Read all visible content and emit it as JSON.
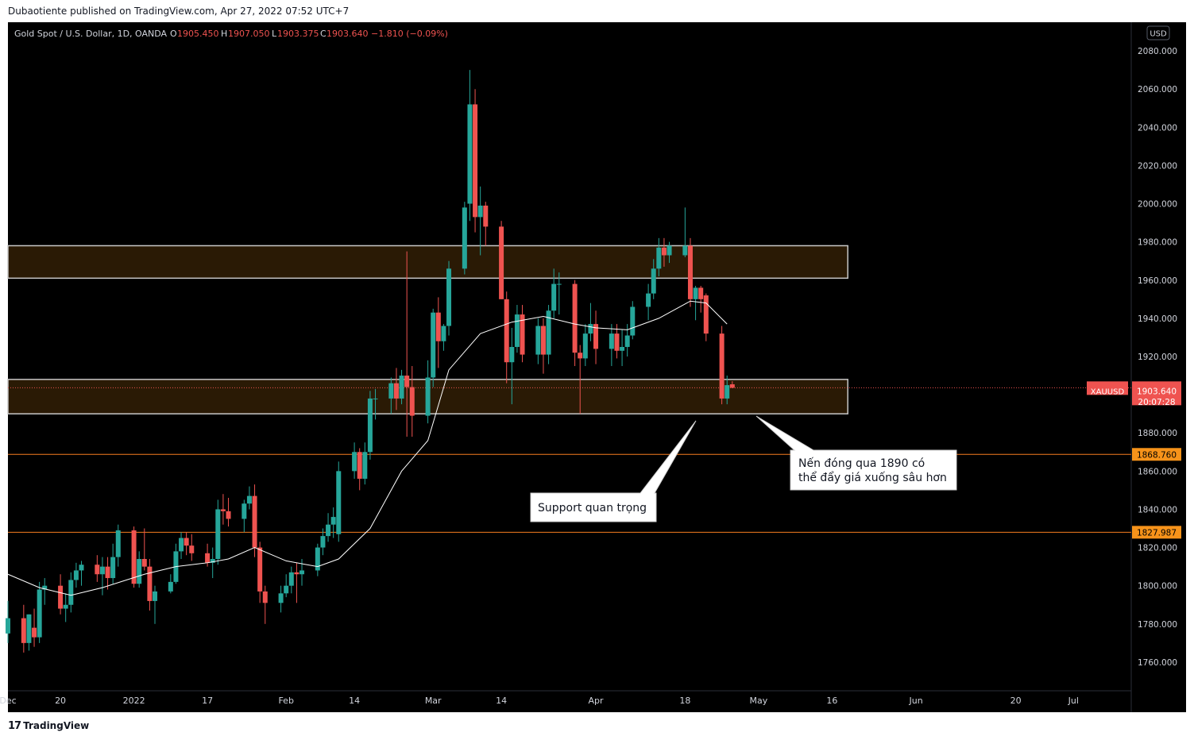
{
  "header": {
    "publisher_line": "Dubaotiente published on TradingView.com, Apr 27, 2022 07:52 UTC+7"
  },
  "legend": {
    "title": "Gold Spot / U.S. Dollar, 1D, OANDA",
    "open_label": "O",
    "open_value": "1905.450",
    "high_label": "H",
    "high_value": "1907.050",
    "low_label": "L",
    "low_value": "1903.375",
    "close_label": "C",
    "close_value": "1903.640",
    "change": "−1.810 (−0.09%)"
  },
  "currency_badge": "USD",
  "price_tag": {
    "symbol": "XAUUSD",
    "price": "1903.640",
    "countdown": "20:07:28"
  },
  "level_tags": [
    {
      "value": 1868.76,
      "label": "1868.760"
    },
    {
      "value": 1827.987,
      "label": "1827.987"
    }
  ],
  "annotations": [
    {
      "text_lines": [
        "Support quan trọng"
      ]
    },
    {
      "text_lines": [
        "Nến đóng qua 1890 có",
        "thể đẩy giá xuống sâu hơn"
      ]
    }
  ],
  "footer": {
    "brand": "TradingView"
  },
  "colors": {
    "background": "#000000",
    "up": "#26a69a",
    "down": "#ef5350",
    "zone_fill": "#2a1a05",
    "zone_border": "#c8c8c8",
    "level_line": "#f57c1f",
    "level_tag": "#f7931a",
    "axis_text": "#d1d4dc",
    "ma_line": "#ffffff"
  },
  "chart_data": {
    "type": "candlestick",
    "symbol": "XAUUSD",
    "timeframe": "1D",
    "y_axis": {
      "range": [
        1745,
        2095
      ],
      "ticks": [
        1760,
        1780,
        1800,
        1820,
        1840,
        1860,
        1880,
        1900,
        1920,
        1940,
        1960,
        1980,
        2000,
        2020,
        2040,
        2060,
        2080
      ],
      "tick_labels": [
        "1760.000",
        "1780.000",
        "1800.000",
        "1820.000",
        "1840.000",
        "1860.000",
        "1880.000",
        "1900.000",
        "1920.000",
        "1940.000",
        "1960.000",
        "1980.000",
        "2000.000",
        "2020.000",
        "2040.000",
        "2060.000",
        "2080.000"
      ]
    },
    "x_axis": {
      "range": [
        "2021-12-10",
        "2022-07-12"
      ],
      "ticks": [
        {
          "date": "2021-12-10",
          "label": "Dec"
        },
        {
          "date": "2021-12-20",
          "label": "20"
        },
        {
          "date": "2022-01-03",
          "label": "2022"
        },
        {
          "date": "2022-01-17",
          "label": "17"
        },
        {
          "date": "2022-02-01",
          "label": "Feb"
        },
        {
          "date": "2022-02-14",
          "label": "14"
        },
        {
          "date": "2022-03-01",
          "label": "Mar"
        },
        {
          "date": "2022-03-14",
          "label": "14"
        },
        {
          "date": "2022-04-01",
          "label": "Apr"
        },
        {
          "date": "2022-04-18",
          "label": "18"
        },
        {
          "date": "2022-05-02",
          "label": "May"
        },
        {
          "date": "2022-05-16",
          "label": "16"
        },
        {
          "date": "2022-06-01",
          "label": "Jun"
        },
        {
          "date": "2022-06-20",
          "label": "20"
        },
        {
          "date": "2022-07-01",
          "label": "Jul"
        }
      ]
    },
    "zones": [
      {
        "from": 1961,
        "to": 1978,
        "start": "2021-12-10",
        "end": "2022-05-19"
      },
      {
        "from": 1890,
        "to": 1908,
        "start": "2021-12-10",
        "end": "2022-05-19"
      }
    ],
    "horizontal_levels": [
      1868.76,
      1827.987
    ],
    "current_price": 1903.64,
    "moving_average": {
      "dates": [
        "2021-12-10",
        "2021-12-16",
        "2021-12-22",
        "2021-12-28",
        "2022-01-05",
        "2022-01-11",
        "2022-01-17",
        "2022-01-21",
        "2022-01-26",
        "2022-02-01",
        "2022-02-07",
        "2022-02-11",
        "2022-02-17",
        "2022-02-23",
        "2022-02-28",
        "2022-03-04",
        "2022-03-10",
        "2022-03-16",
        "2022-03-22",
        "2022-03-28",
        "2022-04-01",
        "2022-04-07",
        "2022-04-13",
        "2022-04-19",
        "2022-04-22",
        "2022-04-26"
      ],
      "values": [
        1806,
        1799,
        1795,
        1799,
        1806,
        1810,
        1812,
        1814,
        1820,
        1813,
        1810,
        1814,
        1830,
        1860,
        1876,
        1913,
        1932,
        1938,
        1941,
        1937,
        1935,
        1934,
        1940,
        1949,
        1948,
        1937
      ]
    },
    "candles": [
      {
        "d": "2021-12-10",
        "o": 1775,
        "h": 1792,
        "l": 1770,
        "c": 1783
      },
      {
        "d": "2021-12-13",
        "o": 1783,
        "h": 1790,
        "l": 1765,
        "c": 1770
      },
      {
        "d": "2021-12-14",
        "o": 1770,
        "h": 1785,
        "l": 1766,
        "c": 1785
      },
      {
        "d": "2021-12-15",
        "o": 1778,
        "h": 1788,
        "l": 1768,
        "c": 1773
      },
      {
        "d": "2021-12-16",
        "o": 1773,
        "h": 1802,
        "l": 1770,
        "c": 1798
      },
      {
        "d": "2021-12-17",
        "o": 1798,
        "h": 1804,
        "l": 1790,
        "c": 1800
      },
      {
        "d": "2021-12-20",
        "o": 1800,
        "h": 1806,
        "l": 1785,
        "c": 1788
      },
      {
        "d": "2021-12-21",
        "o": 1788,
        "h": 1796,
        "l": 1781,
        "c": 1790
      },
      {
        "d": "2021-12-22",
        "o": 1790,
        "h": 1807,
        "l": 1786,
        "c": 1803
      },
      {
        "d": "2021-12-23",
        "o": 1803,
        "h": 1812,
        "l": 1799,
        "c": 1808
      },
      {
        "d": "2021-12-24",
        "o": 1808,
        "h": 1813,
        "l": 1800,
        "c": 1811
      },
      {
        "d": "2021-12-27",
        "o": 1811,
        "h": 1816,
        "l": 1802,
        "c": 1806
      },
      {
        "d": "2021-12-28",
        "o": 1806,
        "h": 1815,
        "l": 1795,
        "c": 1810
      },
      {
        "d": "2021-12-29",
        "o": 1810,
        "h": 1815,
        "l": 1798,
        "c": 1804
      },
      {
        "d": "2021-12-30",
        "o": 1804,
        "h": 1822,
        "l": 1801,
        "c": 1815
      },
      {
        "d": "2021-12-31",
        "o": 1815,
        "h": 1832,
        "l": 1810,
        "c": 1829
      },
      {
        "d": "2022-01-03",
        "o": 1829,
        "h": 1831,
        "l": 1799,
        "c": 1801
      },
      {
        "d": "2022-01-04",
        "o": 1801,
        "h": 1818,
        "l": 1799,
        "c": 1814
      },
      {
        "d": "2022-01-05",
        "o": 1814,
        "h": 1830,
        "l": 1808,
        "c": 1810
      },
      {
        "d": "2022-01-06",
        "o": 1810,
        "h": 1814,
        "l": 1787,
        "c": 1792
      },
      {
        "d": "2022-01-07",
        "o": 1792,
        "h": 1800,
        "l": 1780,
        "c": 1797
      },
      {
        "d": "2022-01-10",
        "o": 1797,
        "h": 1806,
        "l": 1796,
        "c": 1802
      },
      {
        "d": "2022-01-11",
        "o": 1802,
        "h": 1822,
        "l": 1801,
        "c": 1818
      },
      {
        "d": "2022-01-12",
        "o": 1818,
        "h": 1828,
        "l": 1814,
        "c": 1825
      },
      {
        "d": "2022-01-13",
        "o": 1825,
        "h": 1828,
        "l": 1816,
        "c": 1821
      },
      {
        "d": "2022-01-14",
        "o": 1821,
        "h": 1827,
        "l": 1813,
        "c": 1817
      },
      {
        "d": "2022-01-17",
        "o": 1817,
        "h": 1822,
        "l": 1810,
        "c": 1812
      },
      {
        "d": "2022-01-18",
        "o": 1812,
        "h": 1820,
        "l": 1804,
        "c": 1814
      },
      {
        "d": "2022-01-19",
        "o": 1814,
        "h": 1845,
        "l": 1811,
        "c": 1840
      },
      {
        "d": "2022-01-20",
        "o": 1840,
        "h": 1848,
        "l": 1832,
        "c": 1839
      },
      {
        "d": "2022-01-21",
        "o": 1839,
        "h": 1846,
        "l": 1831,
        "c": 1835
      },
      {
        "d": "2022-01-24",
        "o": 1835,
        "h": 1845,
        "l": 1828,
        "c": 1843
      },
      {
        "d": "2022-01-25",
        "o": 1843,
        "h": 1852,
        "l": 1840,
        "c": 1847
      },
      {
        "d": "2022-01-26",
        "o": 1847,
        "h": 1853,
        "l": 1815,
        "c": 1820
      },
      {
        "d": "2022-01-27",
        "o": 1820,
        "h": 1823,
        "l": 1791,
        "c": 1797
      },
      {
        "d": "2022-01-28",
        "o": 1797,
        "h": 1800,
        "l": 1780,
        "c": 1791
      },
      {
        "d": "2022-01-31",
        "o": 1791,
        "h": 1800,
        "l": 1786,
        "c": 1796
      },
      {
        "d": "2022-02-01",
        "o": 1796,
        "h": 1806,
        "l": 1794,
        "c": 1800
      },
      {
        "d": "2022-02-02",
        "o": 1800,
        "h": 1810,
        "l": 1796,
        "c": 1807
      },
      {
        "d": "2022-02-03",
        "o": 1807,
        "h": 1812,
        "l": 1791,
        "c": 1806
      },
      {
        "d": "2022-02-04",
        "o": 1806,
        "h": 1814,
        "l": 1800,
        "c": 1808
      },
      {
        "d": "2022-02-07",
        "o": 1808,
        "h": 1822,
        "l": 1805,
        "c": 1820
      },
      {
        "d": "2022-02-08",
        "o": 1820,
        "h": 1830,
        "l": 1816,
        "c": 1826
      },
      {
        "d": "2022-02-09",
        "o": 1826,
        "h": 1838,
        "l": 1823,
        "c": 1832
      },
      {
        "d": "2022-02-10",
        "o": 1832,
        "h": 1841,
        "l": 1825,
        "c": 1836
      },
      {
        "d": "2022-02-11",
        "o": 1827,
        "h": 1865,
        "l": 1823,
        "c": 1860
      },
      {
        "d": "2022-02-14",
        "o": 1860,
        "h": 1875,
        "l": 1856,
        "c": 1870
      },
      {
        "d": "2022-02-15",
        "o": 1870,
        "h": 1872,
        "l": 1850,
        "c": 1856
      },
      {
        "d": "2022-02-16",
        "o": 1856,
        "h": 1875,
        "l": 1853,
        "c": 1870
      },
      {
        "d": "2022-02-17",
        "o": 1870,
        "h": 1902,
        "l": 1866,
        "c": 1898
      },
      {
        "d": "2022-02-18",
        "o": 1898,
        "h": 1903,
        "l": 1887,
        "c": 1898
      },
      {
        "d": "2022-02-21",
        "o": 1898,
        "h": 1909,
        "l": 1890,
        "c": 1906
      },
      {
        "d": "2022-02-22",
        "o": 1906,
        "h": 1914,
        "l": 1892,
        "c": 1898
      },
      {
        "d": "2022-02-23",
        "o": 1898,
        "h": 1913,
        "l": 1895,
        "c": 1910
      },
      {
        "d": "2022-02-24",
        "o": 1910,
        "h": 1975,
        "l": 1878,
        "c": 1904
      },
      {
        "d": "2022-02-25",
        "o": 1904,
        "h": 1915,
        "l": 1878,
        "c": 1889
      },
      {
        "d": "2022-02-28",
        "o": 1889,
        "h": 1918,
        "l": 1885,
        "c": 1909
      },
      {
        "d": "2022-03-01",
        "o": 1909,
        "h": 1945,
        "l": 1904,
        "c": 1943
      },
      {
        "d": "2022-03-02",
        "o": 1943,
        "h": 1951,
        "l": 1914,
        "c": 1928
      },
      {
        "d": "2022-03-03",
        "o": 1928,
        "h": 1937,
        "l": 1923,
        "c": 1936
      },
      {
        "d": "2022-03-04",
        "o": 1936,
        "h": 1970,
        "l": 1931,
        "c": 1966
      },
      {
        "d": "2022-03-07",
        "o": 1966,
        "h": 2001,
        "l": 1963,
        "c": 1998
      },
      {
        "d": "2022-03-08",
        "o": 2000,
        "h": 2070,
        "l": 1991,
        "c": 2052
      },
      {
        "d": "2022-03-09",
        "o": 2052,
        "h": 2060,
        "l": 1985,
        "c": 1993
      },
      {
        "d": "2022-03-10",
        "o": 1993,
        "h": 2009,
        "l": 1973,
        "c": 1999
      },
      {
        "d": "2022-03-11",
        "o": 1999,
        "h": 2001,
        "l": 1978,
        "c": 1988
      },
      {
        "d": "2022-03-14",
        "o": 1988,
        "h": 1991,
        "l": 1950,
        "c": 1950
      },
      {
        "d": "2022-03-15",
        "o": 1950,
        "h": 1954,
        "l": 1906,
        "c": 1917
      },
      {
        "d": "2022-03-16",
        "o": 1917,
        "h": 1935,
        "l": 1895,
        "c": 1925
      },
      {
        "d": "2022-03-17",
        "o": 1925,
        "h": 1947,
        "l": 1922,
        "c": 1942
      },
      {
        "d": "2022-03-18",
        "o": 1942,
        "h": 1947,
        "l": 1917,
        "c": 1921
      },
      {
        "d": "2022-03-21",
        "o": 1921,
        "h": 1940,
        "l": 1916,
        "c": 1936
      },
      {
        "d": "2022-03-22",
        "o": 1936,
        "h": 1940,
        "l": 1911,
        "c": 1921
      },
      {
        "d": "2022-03-23",
        "o": 1921,
        "h": 1947,
        "l": 1916,
        "c": 1944
      },
      {
        "d": "2022-03-24",
        "o": 1944,
        "h": 1966,
        "l": 1940,
        "c": 1958
      },
      {
        "d": "2022-03-25",
        "o": 1958,
        "h": 1964,
        "l": 1942,
        "c": 1958
      },
      {
        "d": "2022-03-28",
        "o": 1958,
        "h": 1960,
        "l": 1915,
        "c": 1922
      },
      {
        "d": "2022-03-29",
        "o": 1922,
        "h": 1926,
        "l": 1890,
        "c": 1919
      },
      {
        "d": "2022-03-30",
        "o": 1919,
        "h": 1937,
        "l": 1915,
        "c": 1932
      },
      {
        "d": "2022-03-31",
        "o": 1932,
        "h": 1948,
        "l": 1928,
        "c": 1937
      },
      {
        "d": "2022-04-01",
        "o": 1937,
        "h": 1944,
        "l": 1916,
        "c": 1924
      },
      {
        "d": "2022-04-04",
        "o": 1924,
        "h": 1937,
        "l": 1915,
        "c": 1932
      },
      {
        "d": "2022-04-05",
        "o": 1932,
        "h": 1937,
        "l": 1919,
        "c": 1923
      },
      {
        "d": "2022-04-06",
        "o": 1923,
        "h": 1934,
        "l": 1915,
        "c": 1925
      },
      {
        "d": "2022-04-07",
        "o": 1925,
        "h": 1937,
        "l": 1920,
        "c": 1931
      },
      {
        "d": "2022-04-08",
        "o": 1931,
        "h": 1949,
        "l": 1929,
        "c": 1946
      },
      {
        "d": "2022-04-11",
        "o": 1946,
        "h": 1958,
        "l": 1939,
        "c": 1953
      },
      {
        "d": "2022-04-12",
        "o": 1953,
        "h": 1971,
        "l": 1950,
        "c": 1966
      },
      {
        "d": "2022-04-13",
        "o": 1966,
        "h": 1982,
        "l": 1962,
        "c": 1977
      },
      {
        "d": "2022-04-14",
        "o": 1977,
        "h": 1982,
        "l": 1967,
        "c": 1973
      },
      {
        "d": "2022-04-15",
        "o": 1973,
        "h": 1980,
        "l": 1969,
        "c": 1978
      },
      {
        "d": "2022-04-18",
        "o": 1973,
        "h": 1998,
        "l": 1972,
        "c": 1978
      },
      {
        "d": "2022-04-19",
        "o": 1978,
        "h": 1982,
        "l": 1946,
        "c": 1950
      },
      {
        "d": "2022-04-20",
        "o": 1950,
        "h": 1957,
        "l": 1939,
        "c": 1956
      },
      {
        "d": "2022-04-21",
        "o": 1956,
        "h": 1957,
        "l": 1943,
        "c": 1950
      },
      {
        "d": "2022-04-22",
        "o": 1952,
        "h": 1953,
        "l": 1928,
        "c": 1932
      },
      {
        "d": "2022-04-25",
        "o": 1932,
        "h": 1936,
        "l": 1895,
        "c": 1898
      },
      {
        "d": "2022-04-26",
        "o": 1898,
        "h": 1910,
        "l": 1895,
        "c": 1905
      },
      {
        "d": "2022-04-27",
        "o": 1905.45,
        "h": 1907.05,
        "l": 1903.375,
        "c": 1903.64
      }
    ]
  }
}
